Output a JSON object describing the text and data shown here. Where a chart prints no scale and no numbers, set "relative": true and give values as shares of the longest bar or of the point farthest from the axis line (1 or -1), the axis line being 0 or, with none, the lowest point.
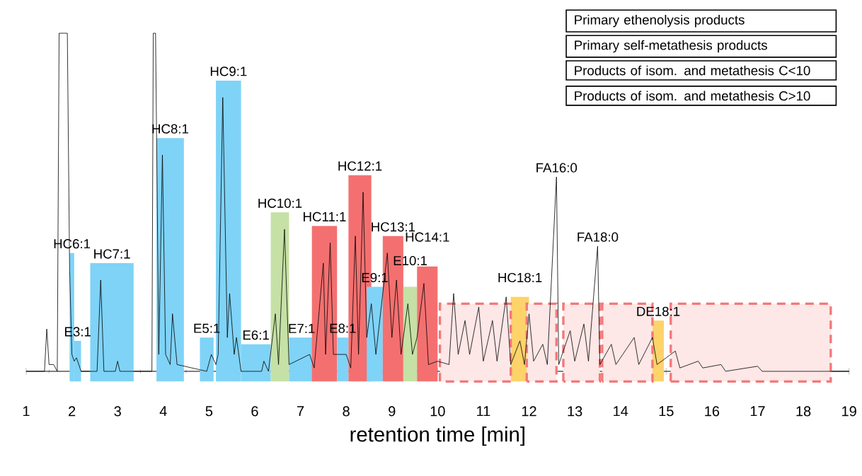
{
  "chart_data": {
    "type": "line",
    "relative": true,
    "xlabel": "retention time [min]",
    "xlim": [
      1,
      19
    ],
    "xticks": [
      1,
      2,
      3,
      4,
      5,
      6,
      7,
      8,
      9,
      10,
      11,
      12,
      13,
      14,
      15,
      16,
      17,
      18,
      19
    ],
    "series": [
      {
        "color": "#000000",
        "x": [
          1.0,
          1.4,
          1.45,
          1.5,
          1.6,
          1.68,
          1.72,
          1.9,
          1.95,
          2.0,
          2.05,
          2.1,
          2.2,
          2.55,
          2.63,
          2.7,
          2.95,
          3.0,
          3.05,
          3.75,
          3.78,
          3.83,
          3.9,
          3.98,
          4.05,
          4.15,
          4.2,
          4.3,
          4.95,
          5.05,
          5.15,
          5.2,
          5.3,
          5.4,
          5.45,
          5.55,
          5.6,
          5.7,
          6.15,
          6.2,
          6.3,
          6.45,
          6.52,
          6.65,
          6.75,
          7.2,
          7.3,
          7.5,
          7.55,
          7.65,
          7.72,
          8.0,
          8.1,
          8.2,
          8.27,
          8.37,
          8.45,
          8.55,
          8.65,
          8.9,
          9.0,
          9.1,
          9.2,
          9.35,
          9.45,
          9.55,
          9.7,
          9.8,
          10.0,
          10.25,
          10.35,
          10.45,
          10.6,
          10.7,
          10.9,
          11.0,
          11.2,
          11.3,
          11.5,
          11.6,
          11.8,
          11.9,
          12.0,
          12.1,
          12.3,
          12.4,
          12.6,
          12.65,
          12.9,
          13.0,
          13.2,
          13.3,
          13.5,
          13.55,
          13.8,
          13.9,
          14.3,
          14.4,
          14.7,
          14.8,
          15.2,
          15.3,
          15.7,
          15.8,
          16.2,
          16.3,
          17.0,
          17.1,
          19.0
        ],
        "values": [
          0,
          0,
          0.125,
          0.02,
          0.02,
          0,
          1,
          1,
          0.3,
          0.05,
          0.03,
          0.04,
          0,
          0,
          0.27,
          0,
          0,
          0.03,
          0,
          0,
          1,
          1,
          0.05,
          0.64,
          0.05,
          0.02,
          0.17,
          0.02,
          0,
          0.05,
          0.02,
          0.05,
          0.81,
          0.1,
          0.23,
          0.05,
          0.1,
          0,
          0,
          0.03,
          0,
          0.17,
          0.02,
          0.42,
          0.02,
          0.05,
          0.01,
          0.32,
          0.05,
          0.38,
          0.05,
          0.05,
          0.01,
          0.4,
          0.05,
          0.53,
          0.1,
          0.2,
          0.05,
          0.35,
          0.1,
          0.27,
          0.05,
          0.2,
          0.05,
          0.1,
          0.26,
          0.02,
          0.03,
          0.02,
          0.23,
          0.05,
          0.15,
          0.05,
          0.19,
          0.03,
          0.15,
          0.03,
          0.22,
          0.02,
          0.09,
          0.02,
          0.17,
          0.03,
          0.08,
          0.02,
          0.575,
          0.02,
          0.12,
          0.03,
          0.14,
          0.03,
          0.37,
          0.02,
          0.08,
          0.02,
          0.1,
          0.02,
          0.1,
          0.02,
          0.06,
          0.01,
          0.03,
          0.01,
          0.02,
          0,
          0.015,
          0,
          0
        ]
      }
    ],
    "bands": [
      {
        "axis": "x",
        "from": 1.95,
        "to": 2.05,
        "label": "HC6:1",
        "color": "#7fd3f7"
      },
      {
        "axis": "x",
        "from": 2.05,
        "to": 2.2,
        "label": "E3:1",
        "color": "#7fd3f7"
      },
      {
        "axis": "x",
        "from": 2.4,
        "to": 3.35,
        "label": "HC7:1",
        "color": "#7fd3f7"
      },
      {
        "axis": "x",
        "from": 3.85,
        "to": 4.45,
        "label": "HC8:1",
        "color": "#7fd3f7"
      },
      {
        "axis": "x",
        "from": 4.8,
        "to": 5.1,
        "label": "E5:1",
        "color": "#7fd3f7"
      },
      {
        "axis": "x",
        "from": 5.15,
        "to": 5.7,
        "label": "HC9:1",
        "color": "#7fd3f7"
      },
      {
        "axis": "x",
        "from": 5.7,
        "to": 6.35,
        "label": "E6:1",
        "color": "#7fd3f7"
      },
      {
        "axis": "x",
        "from": 6.35,
        "to": 6.75,
        "label": "HC10:1",
        "color": "#c5e1a5"
      },
      {
        "axis": "x",
        "from": 6.75,
        "to": 7.3,
        "label": "E7:1",
        "color": "#7fd3f7"
      },
      {
        "axis": "x",
        "from": 7.25,
        "to": 7.8,
        "label": "HC11:1",
        "color": "#f47070"
      },
      {
        "axis": "x",
        "from": 7.8,
        "to": 8.05,
        "label": "E8:1",
        "color": "#7fd3f7"
      },
      {
        "axis": "x",
        "from": 8.05,
        "to": 8.55,
        "label": "HC12:1",
        "color": "#f47070"
      },
      {
        "axis": "x",
        "from": 8.45,
        "to": 8.8,
        "label": "E9:1",
        "color": "#7fd3f7"
      },
      {
        "axis": "x",
        "from": 8.8,
        "to": 9.25,
        "label": "HC13:1",
        "color": "#f47070"
      },
      {
        "axis": "x",
        "from": 9.25,
        "to": 9.55,
        "label": "E10:1",
        "color": "#c5e1a5"
      },
      {
        "axis": "x",
        "from": 9.55,
        "to": 10.0,
        "label": "HC14:1",
        "color": "#f47070"
      },
      {
        "axis": "x",
        "from": 11.6,
        "to": 12.0,
        "label": "HC18:1",
        "color": "#fdd36a"
      },
      {
        "axis": "x",
        "from": 14.7,
        "to": 14.95,
        "label": "DE18:1",
        "color": "#fdd36a"
      },
      {
        "axis": "x",
        "from": 10.05,
        "to": 11.6,
        "color": "#f47878"
      },
      {
        "axis": "x",
        "from": 11.95,
        "to": 12.6,
        "color": "#f47878"
      },
      {
        "axis": "x",
        "from": 12.75,
        "to": 13.55,
        "color": "#f47878"
      },
      {
        "axis": "x",
        "from": 13.6,
        "to": 14.7,
        "color": "#f47878"
      },
      {
        "axis": "x",
        "from": 15.1,
        "to": 18.6,
        "color": "#f47878"
      }
    ],
    "annotations": [
      {
        "text": "FA16:0",
        "x": 12.6,
        "y": 0.575
      },
      {
        "text": "FA18:0",
        "x": 13.5,
        "y": 0.37
      },
      "Primary ethenolysis products",
      "Primary self-metathesis products",
      "Products of isom. and metathesis C<10",
      "Products of isom. and metathesis C>10"
    ]
  }
}
